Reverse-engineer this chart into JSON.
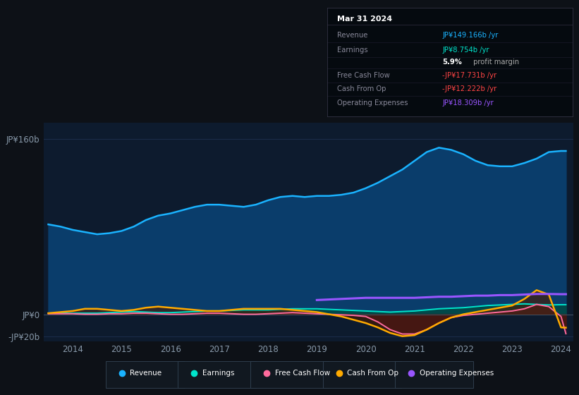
{
  "bg_color": "#0d1117",
  "plot_bg_color": "#0d1b2e",
  "years": [
    2013.5,
    2013.75,
    2014,
    2014.25,
    2014.5,
    2014.75,
    2015,
    2015.25,
    2015.5,
    2015.75,
    2016,
    2016.25,
    2016.5,
    2016.75,
    2017,
    2017.25,
    2017.5,
    2017.75,
    2018,
    2018.25,
    2018.5,
    2018.75,
    2019,
    2019.25,
    2019.5,
    2019.75,
    2020,
    2020.25,
    2020.5,
    2020.75,
    2021,
    2021.25,
    2021.5,
    2021.75,
    2022,
    2022.25,
    2022.5,
    2022.75,
    2023,
    2023.25,
    2023.5,
    2023.75,
    2024,
    2024.1
  ],
  "revenue": [
    82,
    80,
    77,
    75,
    73,
    74,
    76,
    80,
    86,
    90,
    92,
    95,
    98,
    100,
    100,
    99,
    98,
    100,
    104,
    107,
    108,
    107,
    108,
    108,
    109,
    111,
    115,
    120,
    126,
    132,
    140,
    148,
    152,
    150,
    146,
    140,
    136,
    135,
    135,
    138,
    142,
    148,
    149,
    149
  ],
  "earnings": [
    1,
    1,
    1,
    1,
    1,
    1.5,
    2,
    2.5,
    2,
    1.5,
    1.5,
    2,
    2.5,
    3,
    3,
    3.5,
    4,
    4,
    4,
    4.5,
    5,
    5,
    5,
    4.5,
    4,
    3.5,
    3,
    2.5,
    2,
    2.5,
    3,
    4,
    5,
    5.5,
    6,
    7,
    8,
    8.5,
    9,
    9.5,
    9,
    8.5,
    8.754,
    8.754
  ],
  "free_cash_flow": [
    0.5,
    0.5,
    0.5,
    0,
    0,
    0.5,
    0.5,
    1,
    1,
    0.5,
    0,
    0,
    0.5,
    1,
    1,
    0.5,
    0,
    0,
    0.5,
    1,
    1.5,
    1,
    0.5,
    0,
    -0.5,
    -1,
    -2,
    -7,
    -14,
    -18,
    -18,
    -14,
    -8,
    -3,
    -1,
    0,
    1,
    2,
    3,
    5,
    9,
    7,
    -2,
    -17.731
  ],
  "cash_from_op": [
    1,
    2,
    3,
    5,
    5,
    4,
    3,
    4,
    6,
    7,
    6,
    5,
    4,
    3,
    3,
    4,
    5,
    5,
    5,
    5,
    4,
    3,
    2,
    0,
    -2,
    -5,
    -8,
    -12,
    -17,
    -20,
    -19,
    -14,
    -8,
    -3,
    0,
    2,
    4,
    6,
    8,
    14,
    22,
    18,
    -12,
    -12.222
  ],
  "operating_expenses": [
    null,
    null,
    null,
    null,
    null,
    null,
    null,
    null,
    null,
    null,
    null,
    null,
    null,
    null,
    null,
    null,
    null,
    null,
    null,
    null,
    null,
    null,
    13,
    13.5,
    14,
    14.5,
    15,
    15,
    15,
    15,
    15,
    15.5,
    16,
    16,
    16.5,
    17,
    17,
    17.5,
    17.5,
    18,
    18.5,
    18.5,
    18.309,
    18.309
  ],
  "revenue_color": "#1ab3ff",
  "earnings_color": "#00e5cc",
  "free_cash_flow_color": "#ff6b9d",
  "cash_from_op_color": "#ffaa00",
  "operating_expenses_color": "#9955ff",
  "revenue_fill_color": "#0a3d6b",
  "earnings_fill_color": "#004d40",
  "free_cash_flow_fill_color": "#6b1030",
  "cash_from_op_fill_neg_color": "#4a1a00",
  "ylim": [
    -25,
    175
  ],
  "yticks": [
    -20,
    0,
    160
  ],
  "ytick_labels": [
    "-JP¥20b",
    "JP¥0",
    "JP¥160b"
  ],
  "xtick_labels": [
    "2014",
    "2015",
    "2016",
    "2017",
    "2018",
    "2019",
    "2020",
    "2021",
    "2022",
    "2023",
    "2024"
  ],
  "xtick_positions": [
    2014,
    2015,
    2016,
    2017,
    2018,
    2019,
    2020,
    2021,
    2022,
    2023,
    2024
  ],
  "info_box_title": "Mar 31 2024",
  "info_rows": [
    {
      "label": "Revenue",
      "value": "JP¥149.166b /yr",
      "value_color": "#1ab3ff"
    },
    {
      "label": "Earnings",
      "value": "JP¥8.754b /yr",
      "value_color": "#00e5cc"
    },
    {
      "label": "",
      "value": "5.9%",
      "value_color": "#ffffff",
      "suffix": " profit margin",
      "suffix_color": "#aaaaaa"
    },
    {
      "label": "Free Cash Flow",
      "value": "-JP¥17.731b /yr",
      "value_color": "#ff4444"
    },
    {
      "label": "Cash From Op",
      "value": "-JP¥12.222b /yr",
      "value_color": "#ff4444"
    },
    {
      "label": "Operating Expenses",
      "value": "JP¥18.309b /yr",
      "value_color": "#9955ff"
    }
  ],
  "legend_items": [
    {
      "label": "Revenue",
      "color": "#1ab3ff"
    },
    {
      "label": "Earnings",
      "color": "#00e5cc"
    },
    {
      "label": "Free Cash Flow",
      "color": "#ff6b9d"
    },
    {
      "label": "Cash From Op",
      "color": "#ffaa00"
    },
    {
      "label": "Operating Expenses",
      "color": "#9955ff"
    }
  ],
  "grid_color": "#1e3050",
  "text_color": "#8899aa",
  "tick_label_color": "#8899aa"
}
